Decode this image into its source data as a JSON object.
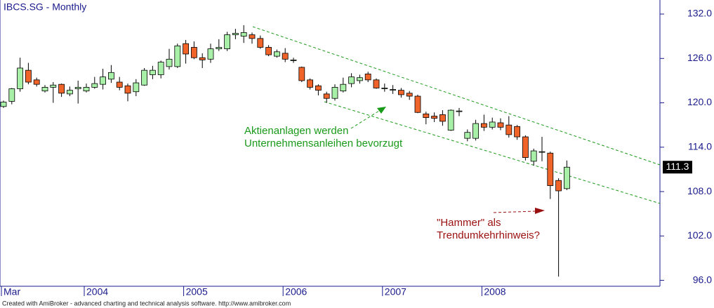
{
  "chart_data": {
    "type": "candlestick",
    "title": "IBCS.SG - Monthly",
    "categories": [
      "Mar",
      null,
      null,
      null,
      null,
      null,
      null,
      null,
      null,
      null,
      "2004",
      null,
      null,
      null,
      null,
      null,
      null,
      null,
      null,
      null,
      null,
      null,
      "2005",
      null,
      null,
      null,
      null,
      null,
      null,
      null,
      null,
      null,
      null,
      null,
      "2006",
      null,
      null,
      null,
      null,
      null,
      null,
      null,
      null,
      null,
      null,
      null,
      "2007",
      null,
      null,
      null,
      null,
      null,
      null,
      null,
      null,
      null,
      null,
      null,
      "2008",
      null,
      null,
      null,
      null,
      null,
      null,
      null,
      null,
      null,
      null
    ],
    "open": [
      119.5,
      120.2,
      121.9,
      124.4,
      123.1,
      121.6,
      122.1,
      122.5,
      121.2,
      121.9,
      121.6,
      122.1,
      122.5,
      123.2,
      122.8,
      122.3,
      121.5,
      122.4,
      123.8,
      123.8,
      124.9,
      124.9,
      128.0,
      127.5,
      126.1,
      125.9,
      127.3,
      127.3,
      129.2,
      129.0,
      129.2,
      128.7,
      127.5,
      126.3,
      126.7,
      125.8,
      124.8,
      123.1,
      122.3,
      121.2,
      120.6,
      121.6,
      122.6,
      123.0,
      123.9,
      123.1,
      122.0,
      121.8,
      121.7,
      121.3,
      120.9,
      118.5,
      118.2,
      118.4,
      116.3,
      118.9,
      115.2,
      115.2,
      117.2,
      116.7,
      117.3,
      117.0,
      116.8,
      115.4,
      112.1,
      113.4,
      113.2,
      109.5,
      108.4
    ],
    "high": [
      120.3,
      122.0,
      126.1,
      125.4,
      123.4,
      122.4,
      122.8,
      122.6,
      122.2,
      123.0,
      122.6,
      123.5,
      124.6,
      125.1,
      123.5,
      122.6,
      123.2,
      124.7,
      125.0,
      125.7,
      127.3,
      128.0,
      128.5,
      128.3,
      126.7,
      128.0,
      128.6,
      129.6,
      130.0,
      130.5,
      129.5,
      129.1,
      127.8,
      127.2,
      127.4,
      126.1,
      124.9,
      123.3,
      122.5,
      121.5,
      122.5,
      123.4,
      124.0,
      123.8,
      124.2,
      123.3,
      122.6,
      122.4,
      122.0,
      121.6,
      121.1,
      118.8,
      118.7,
      119.0,
      119.1,
      119.3,
      116.4,
      117.7,
      118.4,
      118.0,
      117.9,
      118.2,
      117.0,
      115.6,
      113.8,
      115.4,
      113.4,
      109.8,
      112.2
    ],
    "low": [
      119.3,
      119.8,
      121.5,
      122.5,
      122.2,
      121.4,
      120.0,
      120.8,
      120.9,
      119.9,
      121.4,
      121.9,
      121.8,
      122.7,
      121.7,
      120.2,
      120.9,
      122.3,
      123.2,
      123.3,
      124.5,
      124.7,
      125.3,
      125.9,
      124.7,
      125.4,
      127.0,
      127.0,
      128.6,
      128.1,
      128.0,
      127.3,
      126.3,
      126.1,
      125.5,
      125.4,
      122.8,
      121.8,
      121.0,
      120.0,
      120.3,
      121.4,
      122.1,
      122.6,
      122.8,
      121.9,
      121.5,
      121.2,
      120.7,
      120.4,
      118.6,
      117.1,
      117.4,
      116.9,
      116.2,
      118.2,
      114.8,
      114.9,
      116.2,
      116.4,
      116.3,
      115.3,
      115.0,
      112.2,
      111.5,
      112.1,
      107.0,
      96.5,
      108.2
    ],
    "close": [
      120.1,
      121.9,
      124.7,
      122.8,
      122.5,
      122.1,
      122.4,
      121.3,
      121.7,
      122.1,
      122.1,
      122.6,
      123.5,
      124.1,
      122.1,
      121.3,
      122.7,
      124.4,
      124.4,
      125.5,
      125.9,
      127.7,
      126.6,
      126.1,
      125.8,
      127.3,
      127.5,
      129.2,
      129.4,
      129.5,
      128.7,
      127.5,
      126.5,
      126.9,
      125.9,
      125.8,
      123.0,
      122.1,
      121.7,
      120.6,
      122.1,
      122.5,
      123.5,
      123.4,
      123.1,
      122.0,
      122.0,
      121.8,
      121.1,
      120.9,
      118.7,
      118.0,
      117.9,
      117.5,
      119.0,
      118.9,
      116.0,
      117.2,
      116.7,
      117.4,
      116.7,
      115.7,
      115.4,
      112.6,
      113.5,
      113.4,
      108.8,
      108.1,
      111.3
    ],
    "up_color": "#a8f0a8",
    "down_color": "#f0642a",
    "ylim": [
      95.2,
      133.9
    ],
    "yticks": [
      {
        "value": 96,
        "label": "96.0"
      },
      {
        "value": 102,
        "label": "102.0"
      },
      {
        "value": 108,
        "label": "108.0"
      },
      {
        "value": 114,
        "label": "114.0"
      },
      {
        "value": 120,
        "label": "120.0"
      },
      {
        "value": 126,
        "label": "126.0"
      },
      {
        "value": 132,
        "label": "132.0"
      }
    ],
    "annotations": [
      {
        "text": "Aktienanlagen werden",
        "color": "#1a9a1a"
      },
      {
        "text": "Unternehmensanleihen bevorzugt",
        "color": "#1a9a1a"
      },
      {
        "text": "\"Hammer\" als",
        "color": "#9a1010"
      },
      {
        "text": "Trendumkehrhinweis?",
        "color": "#9a1010"
      }
    ],
    "footer": "Created with AmiBroker - advanced charting and technical analysis software. http://www.amibroker.com"
  }
}
